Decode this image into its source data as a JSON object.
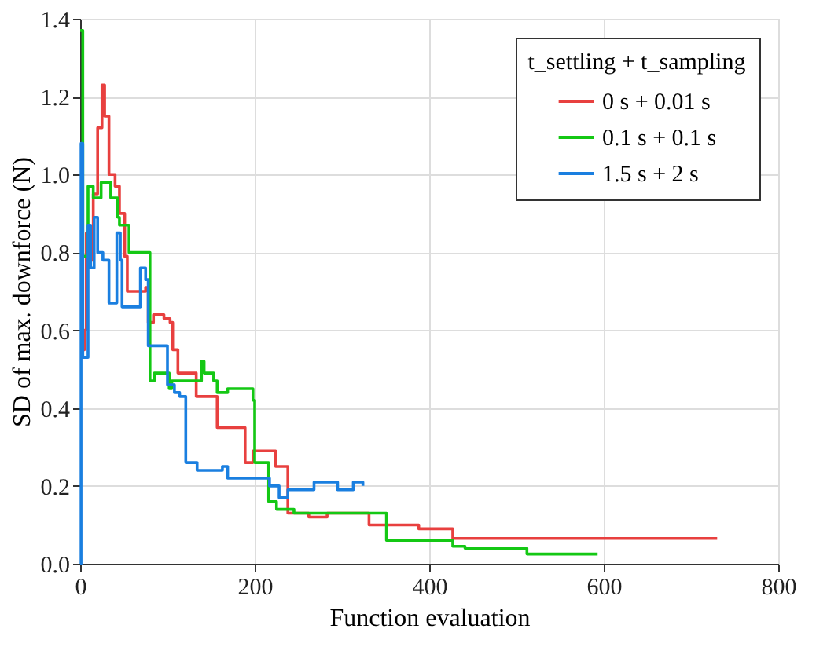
{
  "chart_data": {
    "type": "step",
    "xlabel": "Function evaluation",
    "ylabel": "SD of max. downforce (N)",
    "legend_title": "t_settling + t_sampling",
    "xlim": [
      0,
      800
    ],
    "xticks": [
      0,
      200,
      400,
      600,
      800
    ],
    "ylim": [
      0,
      1.4
    ],
    "yticks": [
      {
        "value": 0,
        "label": "0.0"
      },
      0.2,
      0.4,
      0.6,
      0.8,
      {
        "value": 1,
        "label": "1.0"
      },
      1.2,
      1.4
    ],
    "grid": true,
    "legend": "top right",
    "line_style": "solid",
    "marker": "none",
    "series": [
      {
        "name": "0 s + 0.01 s",
        "color": "#e8403f",
        "x": [
          3,
          5,
          7,
          10,
          15,
          20,
          25,
          28,
          33,
          40,
          45,
          51,
          54,
          75,
          78,
          84,
          96,
          103,
          106,
          112,
          133,
          157,
          189,
          198,
          224,
          238,
          262,
          283,
          331,
          358,
          388,
          427,
          730
        ],
        "values": [
          0.55,
          0.6,
          0.85,
          0.78,
          0.95,
          1.12,
          1.23,
          1.15,
          1.0,
          0.97,
          0.9,
          0.79,
          0.7,
          0.71,
          0.62,
          0.64,
          0.63,
          0.62,
          0.55,
          0.49,
          0.43,
          0.35,
          0.26,
          0.29,
          0.25,
          0.13,
          0.12,
          0.13,
          0.1,
          0.1,
          0.09,
          0.065,
          0.065
        ]
      },
      {
        "name": "0.1 s + 0.1 s",
        "color": "#14c814",
        "x": [
          0,
          3,
          9,
          15,
          24,
          35,
          43,
          45,
          56,
          80,
          85,
          102,
          105,
          139,
          142,
          153,
          157,
          169,
          198,
          200,
          216,
          225,
          245,
          344,
          351,
          427,
          441,
          512,
          593
        ],
        "values": [
          1.37,
          0.79,
          0.97,
          0.94,
          0.98,
          0.94,
          0.89,
          0.87,
          0.8,
          0.47,
          0.49,
          0.45,
          0.47,
          0.52,
          0.49,
          0.47,
          0.44,
          0.45,
          0.42,
          0.26,
          0.16,
          0.14,
          0.13,
          0.13,
          0.06,
          0.045,
          0.04,
          0.025,
          0.025
        ]
      },
      {
        "name": "1.5 s + 2 s",
        "color": "#1a7fe0",
        "x": [
          0,
          1,
          3,
          9,
          12,
          16,
          20,
          26,
          33,
          42,
          46,
          48,
          66,
          69,
          75,
          78,
          97,
          100,
          108,
          114,
          121,
          134,
          163,
          169,
          208,
          217,
          228,
          238,
          268,
          295,
          313,
          324
        ],
        "values": [
          0,
          1.08,
          0.53,
          0.87,
          0.76,
          0.89,
          0.8,
          0.78,
          0.67,
          0.85,
          0.78,
          0.66,
          0.66,
          0.76,
          0.73,
          0.56,
          0.56,
          0.46,
          0.44,
          0.43,
          0.26,
          0.24,
          0.25,
          0.22,
          0.22,
          0.2,
          0.17,
          0.19,
          0.21,
          0.19,
          0.21,
          0.2
        ]
      }
    ]
  }
}
